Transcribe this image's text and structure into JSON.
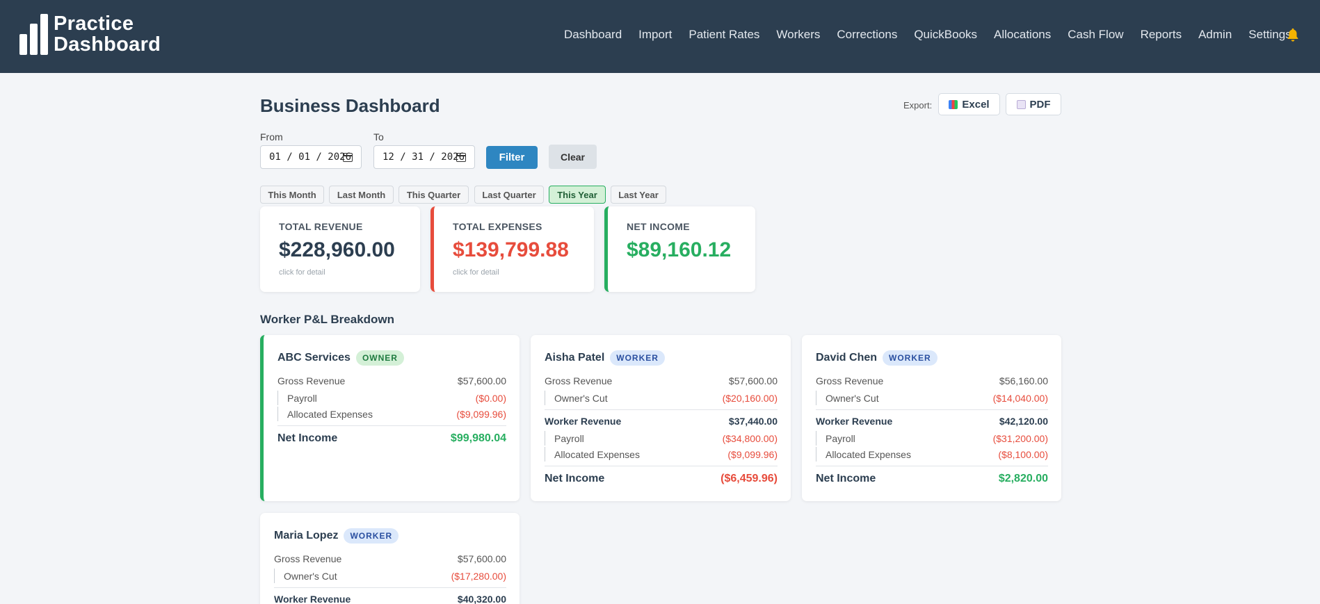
{
  "app": {
    "logo_line1": "Practice",
    "logo_line2": "Dashboard"
  },
  "nav": {
    "items": [
      "Dashboard",
      "Import",
      "Patient Rates",
      "Workers",
      "Corrections",
      "QuickBooks",
      "Allocations",
      "Cash Flow",
      "Reports",
      "Admin",
      "Settings"
    ],
    "bell_icon": "bell-icon"
  },
  "page": {
    "title": "Business Dashboard",
    "export_label": "Export:",
    "export_excel": "Excel",
    "export_pdf": "PDF"
  },
  "filter": {
    "from_label": "From",
    "to_label": "To",
    "from_value": "01 / 01 / 2026",
    "to_value": "12 / 31 / 2026",
    "filter_button": "Filter",
    "clear_button": "Clear",
    "presets": [
      "This Month",
      "Last Month",
      "This Quarter",
      "Last Quarter",
      "This Year",
      "Last Year"
    ],
    "active_preset": "This Year"
  },
  "stats": {
    "revenue": {
      "label": "TOTAL REVENUE",
      "value": "$228,960.00",
      "hint": "click for detail"
    },
    "expenses": {
      "label": "TOTAL EXPENSES",
      "value": "$139,799.88",
      "hint": "click for detail"
    },
    "net": {
      "label": "NET INCOME",
      "value": "$89,160.12"
    }
  },
  "colors": {
    "header_bg": "#2c3e50",
    "accent_blue": "#2e86c1",
    "positive": "#27ae60",
    "negative": "#e74c3c"
  },
  "workers_section_title": "Worker P&L Breakdown",
  "workers": [
    {
      "name": "ABC Services",
      "badge": "OWNER",
      "gross_label": "Gross Revenue",
      "gross": "$57,600.00",
      "payroll_label": "Payroll",
      "payroll": "($0.00)",
      "alloc_label": "Allocated Expenses",
      "alloc": "($9,099.96)",
      "net_label": "Net Income",
      "net": "$99,980.04"
    },
    {
      "name": "Aisha Patel",
      "badge": "WORKER",
      "gross_label": "Gross Revenue",
      "gross": "$57,600.00",
      "cut_label": "Owner's Cut",
      "cut": "($20,160.00)",
      "wrev_label": "Worker Revenue",
      "wrev": "$37,440.00",
      "payroll_label": "Payroll",
      "payroll": "($34,800.00)",
      "alloc_label": "Allocated Expenses",
      "alloc": "($9,099.96)",
      "net_label": "Net Income",
      "net": "($6,459.96)"
    },
    {
      "name": "David Chen",
      "badge": "WORKER",
      "gross_label": "Gross Revenue",
      "gross": "$56,160.00",
      "cut_label": "Owner's Cut",
      "cut": "($14,040.00)",
      "wrev_label": "Worker Revenue",
      "wrev": "$42,120.00",
      "payroll_label": "Payroll",
      "payroll": "($31,200.00)",
      "alloc_label": "Allocated Expenses",
      "alloc": "($8,100.00)",
      "net_label": "Net Income",
      "net": "$2,820.00"
    },
    {
      "name": "Maria Lopez",
      "badge": "WORKER",
      "gross_label": "Gross Revenue",
      "gross": "$57,600.00",
      "cut_label": "Owner's Cut",
      "cut": "($17,280.00)",
      "wrev_label": "Worker Revenue",
      "wrev": "$40,320.00"
    }
  ]
}
